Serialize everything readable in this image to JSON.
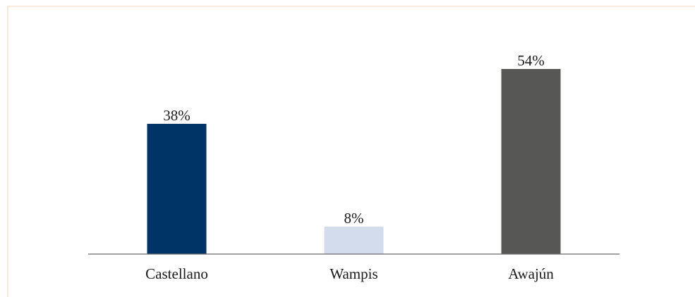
{
  "chart_data": {
    "type": "bar",
    "categories": [
      "Castellano",
      "Wampis",
      "Awajún"
    ],
    "values": [
      38,
      8,
      54
    ],
    "value_labels": [
      "38%",
      "8%",
      "54%"
    ],
    "colors": [
      "#003366",
      "#d3dcec",
      "#575756"
    ],
    "title": "",
    "xlabel": "",
    "ylabel": "",
    "ylim": [
      0,
      54
    ],
    "grid": false,
    "legend": "none"
  }
}
